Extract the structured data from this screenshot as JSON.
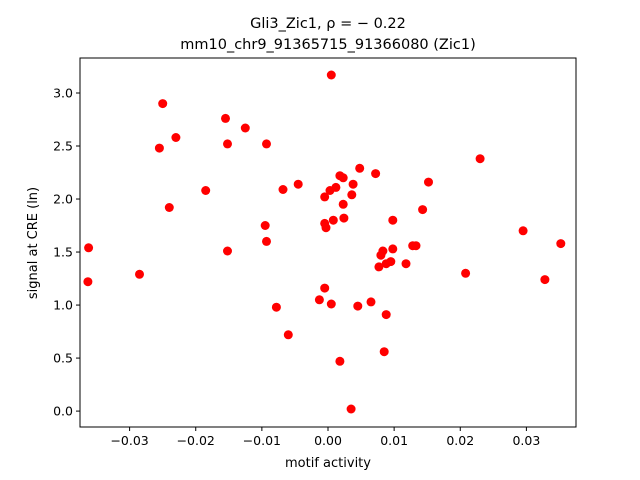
{
  "colors": {
    "points": "#ff0000",
    "axes": "#000000",
    "background": "#ffffff"
  },
  "chart_data": {
    "type": "scatter",
    "title_line1": "Gli3_Zic1, ρ = − 0.22",
    "title_line2": "mm10_chr9_91365715_91366080 (Zic1)",
    "xlabel": "motif activity",
    "ylabel": "signal at CRE (ln)",
    "xlim": [
      -0.0375,
      0.0375
    ],
    "ylim": [
      -0.15,
      3.33
    ],
    "xticks": [
      -0.03,
      -0.02,
      -0.01,
      0.0,
      0.01,
      0.02,
      0.03
    ],
    "xtick_labels": [
      "−0.03",
      "−0.02",
      "−0.01",
      "0.00",
      "0.01",
      "0.02",
      "0.03"
    ],
    "yticks": [
      0.0,
      0.5,
      1.0,
      1.5,
      2.0,
      2.5,
      3.0
    ],
    "ytick_labels": [
      "0.0",
      "0.5",
      "1.0",
      "1.5",
      "2.0",
      "2.5",
      "3.0"
    ],
    "grid": false,
    "series": [
      {
        "points": [
          [
            0.0005,
            3.17
          ],
          [
            -0.025,
            2.9
          ],
          [
            -0.0155,
            2.76
          ],
          [
            -0.023,
            2.58
          ],
          [
            -0.0125,
            2.67
          ],
          [
            -0.0255,
            2.48
          ],
          [
            -0.0152,
            2.52
          ],
          [
            -0.0093,
            2.52
          ],
          [
            0.023,
            2.38
          ],
          [
            0.0048,
            2.29
          ],
          [
            0.0018,
            2.22
          ],
          [
            0.0023,
            2.2
          ],
          [
            0.0072,
            2.24
          ],
          [
            0.0152,
            2.16
          ],
          [
            -0.0045,
            2.14
          ],
          [
            0.0038,
            2.14
          ],
          [
            0.0012,
            2.11
          ],
          [
            -0.0068,
            2.09
          ],
          [
            0.0003,
            2.08
          ],
          [
            -0.0185,
            2.08
          ],
          [
            -0.0005,
            2.02
          ],
          [
            0.0036,
            2.04
          ],
          [
            0.0023,
            1.95
          ],
          [
            -0.024,
            1.92
          ],
          [
            0.0143,
            1.9
          ],
          [
            0.0008,
            1.8
          ],
          [
            0.0024,
            1.82
          ],
          [
            0.0098,
            1.8
          ],
          [
            -0.0005,
            1.77
          ],
          [
            -0.0003,
            1.73
          ],
          [
            -0.0095,
            1.75
          ],
          [
            0.0295,
            1.7
          ],
          [
            -0.0093,
            1.6
          ],
          [
            0.0352,
            1.58
          ],
          [
            0.0128,
            1.56
          ],
          [
            0.0133,
            1.56
          ],
          [
            -0.0362,
            1.54
          ],
          [
            0.0098,
            1.53
          ],
          [
            -0.0152,
            1.51
          ],
          [
            0.0083,
            1.51
          ],
          [
            0.008,
            1.47
          ],
          [
            0.0118,
            1.39
          ],
          [
            0.0088,
            1.39
          ],
          [
            0.0095,
            1.41
          ],
          [
            0.0077,
            1.36
          ],
          [
            0.0208,
            1.3
          ],
          [
            -0.0285,
            1.29
          ],
          [
            0.0328,
            1.24
          ],
          [
            -0.0363,
            1.22
          ],
          [
            -0.0005,
            1.16
          ],
          [
            -0.0013,
            1.05
          ],
          [
            0.0065,
            1.03
          ],
          [
            0.0005,
            1.01
          ],
          [
            0.0045,
            0.99
          ],
          [
            -0.0078,
            0.98
          ],
          [
            0.0088,
            0.91
          ],
          [
            -0.006,
            0.72
          ],
          [
            0.0085,
            0.56
          ],
          [
            0.0018,
            0.47
          ],
          [
            0.0035,
            0.02
          ]
        ]
      }
    ]
  }
}
